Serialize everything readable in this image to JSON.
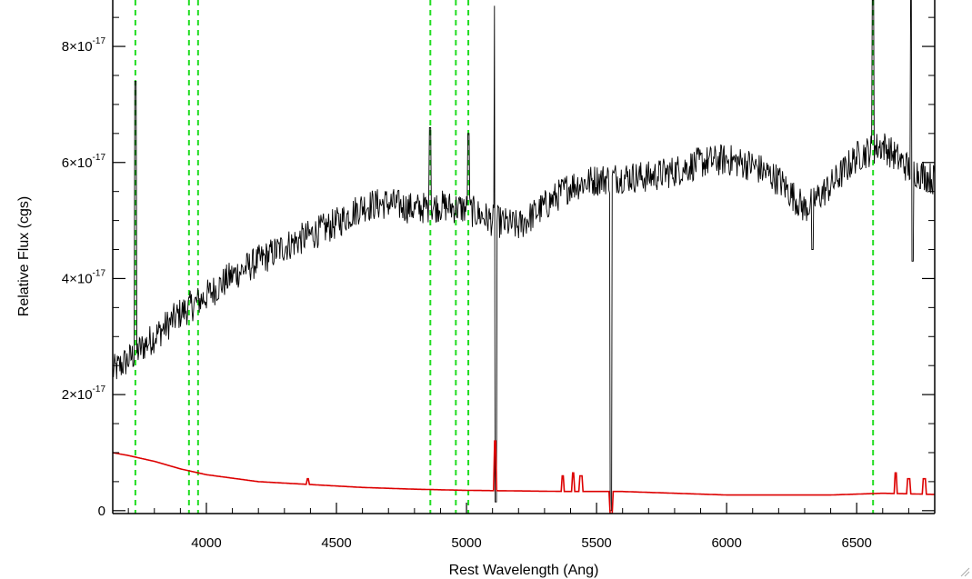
{
  "chart_data": {
    "type": "line",
    "xlabel": "Rest Wavelength (Ang)",
    "ylabel": "Relative Flux (cgs)",
    "xlim": [
      3640,
      6800
    ],
    "ylim": [
      -5e-19,
      8.8e-17
    ],
    "x_ticks": [
      {
        "value": 4000,
        "label": "4000"
      },
      {
        "value": 4500,
        "label": "4500"
      },
      {
        "value": 5000,
        "label": "5000"
      },
      {
        "value": 5500,
        "label": "5500"
      },
      {
        "value": 6000,
        "label": "6000"
      },
      {
        "value": 6500,
        "label": "6500"
      }
    ],
    "y_ticks": [
      {
        "value": 0,
        "mantissa": "0",
        "exponent": ""
      },
      {
        "value": 2e-17,
        "mantissa": "2×10",
        "exponent": "-17"
      },
      {
        "value": 4e-17,
        "mantissa": "4×10",
        "exponent": "-17"
      },
      {
        "value": 6e-17,
        "mantissa": "6×10",
        "exponent": "-17"
      },
      {
        "value": 8e-17,
        "mantissa": "8×10",
        "exponent": "-17"
      }
    ],
    "reference_lines": {
      "color": "#22dd22",
      "style": "dashed",
      "wavelengths": [
        3727,
        3933,
        3968,
        4861,
        4959,
        5007,
        6563
      ]
    },
    "series": [
      {
        "color": "#000000",
        "noise_amplitude": 2.8e-18,
        "x": [
          3640,
          3700,
          3800,
          3900,
          4000,
          4100,
          4200,
          4300,
          4400,
          4500,
          4600,
          4700,
          4800,
          4900,
          5000,
          5100,
          5200,
          5300,
          5400,
          5500,
          5600,
          5700,
          5800,
          5900,
          6000,
          6100,
          6200,
          6300,
          6400,
          6500,
          6600,
          6700,
          6800
        ],
        "y": [
          2.4e-17,
          2.6e-17,
          3e-17,
          3.4e-17,
          3.7e-17,
          4.05e-17,
          4.3e-17,
          4.55e-17,
          4.75e-17,
          4.95e-17,
          5.25e-17,
          5.3e-17,
          5.2e-17,
          5.25e-17,
          5.2e-17,
          5e-17,
          4.9e-17,
          5.25e-17,
          5.6e-17,
          5.7e-17,
          5.75e-17,
          5.75e-17,
          5.85e-17,
          6e-17,
          6.05e-17,
          5.95e-17,
          5.7e-17,
          5.2e-17,
          5.6e-17,
          6.1e-17,
          6.3e-17,
          5.9e-17,
          5.7e-17
        ],
        "features": [
          {
            "x": 3727,
            "y": 7.4e-17
          },
          {
            "x": 4861,
            "y": 6.6e-17
          },
          {
            "x": 5007,
            "y": 6.5e-17
          },
          {
            "x": 5110,
            "y": 8.7e-17
          },
          {
            "x": 5112,
            "y": 1.5e-18
          },
          {
            "x": 5555,
            "y": 0.0
          },
          {
            "x": 6330,
            "y": 4.5e-17
          },
          {
            "x": 6563,
            "y": 8.8e-17
          },
          {
            "x": 6710,
            "y": 8.8e-17
          },
          {
            "x": 6715,
            "y": 4.3e-17
          }
        ]
      },
      {
        "color": "#dd0000",
        "x": [
          3640,
          3700,
          3800,
          3900,
          4000,
          4200,
          4400,
          4600,
          4800,
          5000,
          5200,
          5400,
          5600,
          5800,
          6000,
          6200,
          6400,
          6600,
          6800
        ],
        "y": [
          1e-17,
          9.5e-18,
          8.5e-18,
          7.2e-18,
          6.2e-18,
          5e-18,
          4.5e-18,
          4e-18,
          3.7e-18,
          3.5e-18,
          3.4e-18,
          3.3e-18,
          3.3e-18,
          3e-18,
          2.7e-18,
          2.7e-18,
          2.7e-18,
          3e-18,
          2.8e-18
        ],
        "features": [
          {
            "x": 4390,
            "y": 5.5e-18
          },
          {
            "x": 5110,
            "y": 1.2e-17
          },
          {
            "x": 5370,
            "y": 6e-18
          },
          {
            "x": 5410,
            "y": 6.5e-18
          },
          {
            "x": 5440,
            "y": 6e-18
          },
          {
            "x": 5555,
            "y": -5e-19
          },
          {
            "x": 6650,
            "y": 6.5e-18
          },
          {
            "x": 6700,
            "y": 5.5e-18
          },
          {
            "x": 6760,
            "y": 5.5e-18
          }
        ]
      }
    ]
  }
}
